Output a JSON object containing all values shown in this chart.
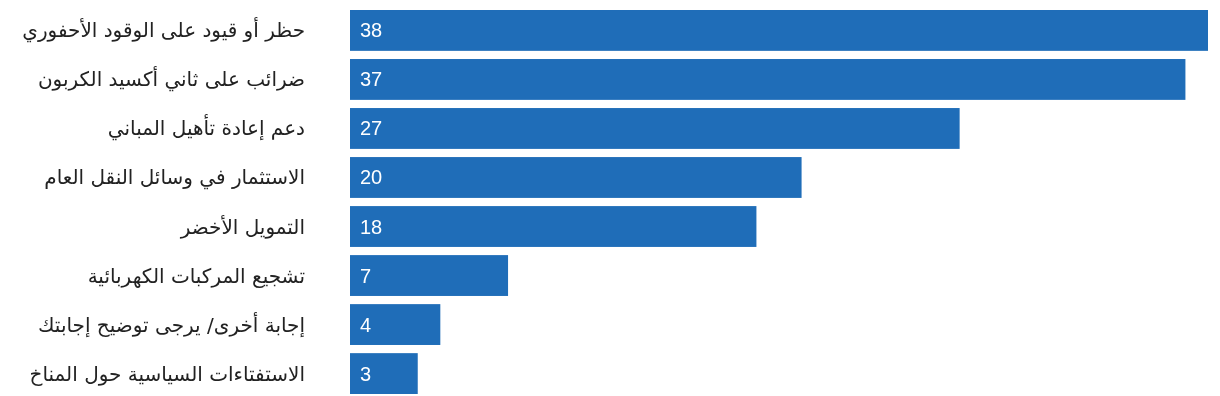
{
  "chart_data": {
    "type": "bar",
    "orientation": "horizontal",
    "categories": [
      "حظر أو قيود على الوقود الأحفوري",
      "ضرائب على ثاني أكسيد الكربون",
      "دعم إعادة تأهيل المباني",
      "الاستثمار في وسائل النقل العام",
      "التمويل الأخضر",
      "تشجيع المركبات الكهربائية",
      "إجابة أخرى/ يرجى توضيح إجابتك",
      "الاستفتاءات السياسية حول المناخ"
    ],
    "values": [
      38,
      37,
      27,
      20,
      18,
      7,
      4,
      3
    ],
    "color": "#1f6db8",
    "data_labels": true
  }
}
